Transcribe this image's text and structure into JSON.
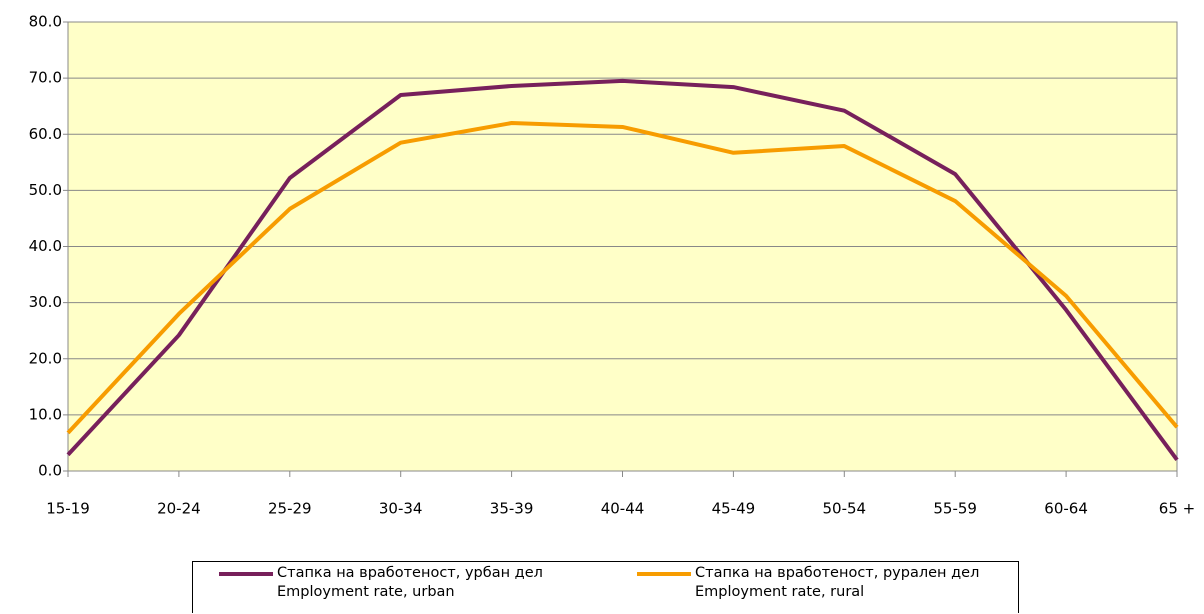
{
  "chart_data": {
    "type": "line",
    "categories": [
      "15-19",
      "20-24",
      "25-29",
      "30-34",
      "35-39",
      "40-44",
      "45-49",
      "50-54",
      "55-59",
      "60-64",
      "65 +"
    ],
    "series": [
      {
        "name": "Стапка на вработеност, урбан дел\nEmployment rate, urban",
        "color": "#77205b",
        "values": [
          2.9,
          24.2,
          52.2,
          67.0,
          68.6,
          69.5,
          68.4,
          64.2,
          52.9,
          28.7,
          2.0
        ]
      },
      {
        "name": "Стапка на вработеност, рурален дел\nEmployment rate, rural",
        "color": "#f79c00",
        "values": [
          6.8,
          28.0,
          46.7,
          58.5,
          62.0,
          61.3,
          56.7,
          57.9,
          48.1,
          31.2,
          7.8
        ]
      }
    ],
    "ylim": [
      0,
      80
    ],
    "yticks": [
      {
        "value": 0,
        "label": "0.0"
      },
      {
        "value": 10,
        "label": "10.0"
      },
      {
        "value": 20,
        "label": "20.0"
      },
      {
        "value": 30,
        "label": "30.0"
      },
      {
        "value": 40,
        "label": "40.0"
      },
      {
        "value": 50,
        "label": "50.0"
      },
      {
        "value": 60,
        "label": "60.0"
      },
      {
        "value": 70,
        "label": "70.0"
      },
      {
        "value": 80,
        "label": "80.0"
      }
    ],
    "grid": true,
    "plot_background": "#ffffc8"
  }
}
